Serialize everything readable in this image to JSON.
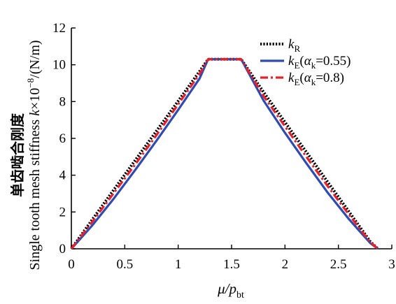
{
  "chart_data": {
    "type": "line",
    "xlabel": {
      "main": "μ/p",
      "sub": "bt"
    },
    "ylabel": {
      "line1": "单齿啮合刚度",
      "line2_main": "Single tooth mesh stiffness ",
      "line2_k": "k",
      "line2_unit": "×10",
      "line2_exp": "−8",
      "line2_tail": "/(N/m)"
    },
    "xlim": [
      0,
      3
    ],
    "ylim": [
      0,
      12
    ],
    "xticks": [
      0,
      0.5,
      1,
      1.5,
      2,
      2.5,
      3
    ],
    "xtick_labels": [
      "0",
      "0.5",
      "1",
      "1.5",
      "2",
      "2.5",
      "3"
    ],
    "yticks": [
      0,
      2,
      4,
      6,
      8,
      10,
      12
    ],
    "ytick_labels": [
      "0",
      "2",
      "4",
      "6",
      "8",
      "10",
      "12"
    ],
    "grid": false,
    "legend_position": "top-right",
    "series": [
      {
        "name": "k_R",
        "legend": {
          "k": "k",
          "sub": "R",
          "rest": ""
        },
        "color": "#000000",
        "style": "dotted",
        "x": [
          0,
          0.2,
          0.4,
          0.6,
          0.8,
          1.0,
          1.2,
          1.28,
          1.4,
          1.5,
          1.59,
          1.8,
          2.0,
          2.2,
          2.4,
          2.6,
          2.8,
          2.87
        ],
        "y": [
          0,
          1.62,
          3.23,
          4.83,
          6.43,
          8.03,
          9.64,
          10.3,
          10.3,
          10.3,
          10.3,
          8.51,
          6.88,
          5.26,
          3.63,
          2.01,
          0.38,
          0
        ]
      },
      {
        "name": "k_E(α_k=0.55)",
        "legend": {
          "k": "k",
          "sub": "E",
          "rest": "(",
          "alpha": "α",
          "alpha_sub": "k",
          "tail": "=0.55)"
        },
        "color": "#2e4bb0",
        "style": "solid",
        "x": [
          0,
          0.2,
          0.4,
          0.6,
          0.8,
          1.0,
          1.2,
          1.28,
          1.4,
          1.5,
          1.59,
          1.8,
          2.0,
          2.2,
          2.4,
          2.6,
          2.8,
          2.87
        ],
        "y": [
          0,
          1.3,
          2.75,
          4.3,
          5.9,
          7.55,
          9.25,
          10.3,
          10.3,
          10.3,
          10.3,
          8.05,
          6.3,
          4.65,
          3.05,
          1.6,
          0.3,
          0
        ]
      },
      {
        "name": "k_E(α_k=0.8)",
        "legend": {
          "k": "k",
          "sub": "E",
          "rest": "(",
          "alpha": "α",
          "alpha_sub": "k",
          "tail": "=0.8)"
        },
        "color": "#e8202a",
        "style": "dashdot",
        "x": [
          0,
          0.2,
          0.4,
          0.6,
          0.8,
          1.0,
          1.2,
          1.28,
          1.4,
          1.5,
          1.59,
          1.8,
          2.0,
          2.2,
          2.4,
          2.6,
          2.8,
          2.87
        ],
        "y": [
          0,
          1.5,
          3.05,
          4.6,
          6.2,
          7.85,
          9.5,
          10.3,
          10.3,
          10.3,
          10.3,
          8.3,
          6.65,
          5.0,
          3.4,
          1.85,
          0.35,
          0
        ]
      }
    ]
  }
}
